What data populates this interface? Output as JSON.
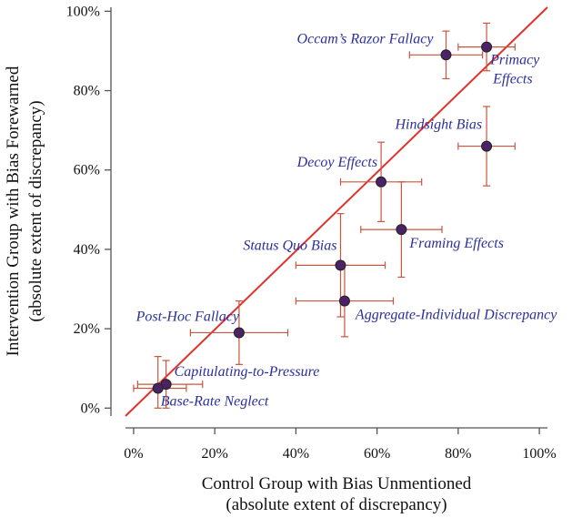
{
  "chart_data": {
    "type": "scatter",
    "title": "",
    "xlabel": [
      "Control Group with Bias Unmentioned",
      "(absolute extent of discrepancy)"
    ],
    "ylabel": [
      "Intervention Group with Bias Forewarned",
      "(absolute extent of discrepancy)"
    ],
    "xlim": [
      -2,
      102
    ],
    "ylim": [
      -2,
      101
    ],
    "x_ticks": [
      0,
      20,
      40,
      60,
      80,
      100
    ],
    "x_tick_labels": [
      "0%",
      "20%",
      "40%",
      "60%",
      "80%",
      "100%"
    ],
    "y_ticks": [
      0,
      20,
      40,
      60,
      80,
      100
    ],
    "y_tick_labels": [
      "0%",
      "20%",
      "40%",
      "60%",
      "80%",
      "100%"
    ],
    "grid": false,
    "reference_line": {
      "type": "identity",
      "from": [
        -2,
        -2
      ],
      "to": [
        102,
        101
      ]
    },
    "colors": {
      "point_fill": "#4a2366",
      "point_stroke": "#222222",
      "error_bar": "#c8553d",
      "reference_line": "#e0322b",
      "label_text": "#2b2f9e",
      "axis": "#555555"
    },
    "points": [
      {
        "label": "Occam’s Razor Fallacy",
        "x": 77,
        "y": 89,
        "x_err": [
          68,
          86
        ],
        "y_err": [
          83,
          95
        ],
        "label_anchor": "left-above"
      },
      {
        "label": "Primacy Effects",
        "label_lines": [
          "Primacy",
          "Effects"
        ],
        "x": 87,
        "y": 91,
        "x_err": [
          80,
          94
        ],
        "y_err": [
          85,
          97
        ],
        "label_anchor": "below-right"
      },
      {
        "label": "Hindsight Bias",
        "x": 87,
        "y": 66,
        "x_err": [
          80,
          94
        ],
        "y_err": [
          56,
          76
        ],
        "label_anchor": "above-left"
      },
      {
        "label": "Decoy Effects",
        "x": 61,
        "y": 57,
        "x_err": [
          51,
          71
        ],
        "y_err": [
          47,
          67
        ],
        "label_anchor": "above-left"
      },
      {
        "label": "Framing Effects",
        "x": 66,
        "y": 45,
        "x_err": [
          56,
          76
        ],
        "y_err": [
          33,
          57
        ],
        "label_anchor": "below-right"
      },
      {
        "label": "Status Quo Bias",
        "x": 51,
        "y": 36,
        "x_err": [
          40,
          62
        ],
        "y_err": [
          23,
          49
        ],
        "label_anchor": "above-left"
      },
      {
        "label": "Aggregate-Individual Discrepancy",
        "x": 52,
        "y": 27,
        "x_err": [
          40,
          64
        ],
        "y_err": [
          18,
          36
        ],
        "label_anchor": "below-right"
      },
      {
        "label": "Post-Hoc Fallacy",
        "x": 26,
        "y": 19,
        "x_err": [
          14,
          38
        ],
        "y_err": [
          11,
          27
        ],
        "label_anchor": "above-left"
      },
      {
        "label": "Capitulating-to-Pressure",
        "x": 8,
        "y": 6,
        "x_err": [
          1,
          17
        ],
        "y_err": [
          0,
          12
        ],
        "label_anchor": "right"
      },
      {
        "label": "Base-Rate Neglect",
        "x": 6,
        "y": 5,
        "x_err": [
          0,
          13
        ],
        "y_err": [
          0,
          13
        ],
        "label_anchor": "below-right"
      }
    ]
  }
}
